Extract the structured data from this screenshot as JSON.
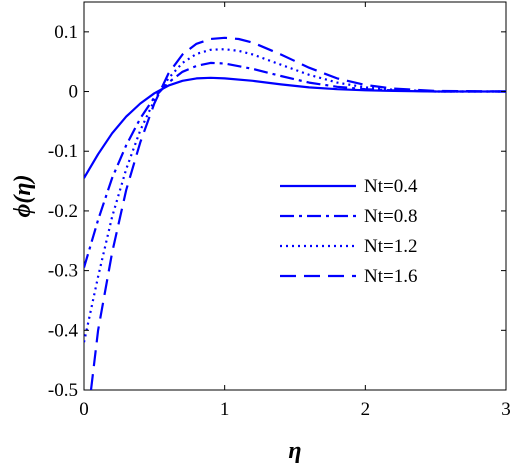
{
  "chart_data": {
    "type": "line",
    "xlabel": "η",
    "ylabel": "ϕ(η)",
    "xlim": [
      0,
      3
    ],
    "ylim": [
      -0.5,
      0.15
    ],
    "xticks": [
      0,
      1,
      2,
      3
    ],
    "xtick_labels": [
      "0",
      "1",
      "2",
      "3"
    ],
    "yticks": [
      -0.5,
      -0.4,
      -0.3,
      -0.2,
      -0.1,
      0,
      0.1
    ],
    "ytick_labels": [
      "-0.5",
      "-0.4",
      "-0.3",
      "-0.2",
      "-0.1",
      "0",
      "0.1"
    ],
    "grid": false,
    "legend_position": "center-right",
    "line_color": "#0000ff",
    "series": [
      {
        "name": "Nt=0.4",
        "style": "solid",
        "x": [
          0,
          0.1,
          0.2,
          0.3,
          0.4,
          0.5,
          0.6,
          0.7,
          0.8,
          0.9,
          1.0,
          1.2,
          1.4,
          1.6,
          1.8,
          2.0,
          2.2,
          2.5,
          3.0
        ],
        "y": [
          -0.145,
          -0.105,
          -0.07,
          -0.042,
          -0.02,
          -0.003,
          0.01,
          0.018,
          0.022,
          0.023,
          0.022,
          0.018,
          0.012,
          0.007,
          0.004,
          0.002,
          0.001,
          0.0,
          0.0
        ]
      },
      {
        "name": "Nt=0.8",
        "style": "dashdot",
        "x": [
          0,
          0.1,
          0.2,
          0.3,
          0.4,
          0.5,
          0.6,
          0.7,
          0.8,
          0.9,
          1.0,
          1.2,
          1.4,
          1.6,
          1.8,
          2.0,
          2.2,
          2.5,
          3.0
        ],
        "y": [
          -0.295,
          -0.215,
          -0.145,
          -0.09,
          -0.045,
          -0.01,
          0.015,
          0.033,
          0.043,
          0.048,
          0.047,
          0.038,
          0.026,
          0.015,
          0.008,
          0.004,
          0.002,
          0.0,
          0.0
        ]
      },
      {
        "name": "Nt=1.2",
        "style": "dotted",
        "x": [
          0,
          0.1,
          0.2,
          0.3,
          0.4,
          0.5,
          0.6,
          0.7,
          0.8,
          0.9,
          1.0,
          1.1,
          1.2,
          1.4,
          1.6,
          1.8,
          2.0,
          2.2,
          2.5,
          3.0
        ],
        "y": [
          -0.42,
          -0.31,
          -0.21,
          -0.13,
          -0.065,
          -0.015,
          0.022,
          0.048,
          0.063,
          0.07,
          0.071,
          0.068,
          0.062,
          0.045,
          0.028,
          0.015,
          0.007,
          0.003,
          0.0,
          0.0
        ]
      },
      {
        "name": "Nt=1.6",
        "style": "dashed",
        "x": [
          0.05,
          0.1,
          0.2,
          0.3,
          0.4,
          0.5,
          0.6,
          0.7,
          0.8,
          0.9,
          1.0,
          1.1,
          1.2,
          1.4,
          1.6,
          1.8,
          2.0,
          2.2,
          2.5,
          3.0
        ],
        "y": [
          -0.5,
          -0.4,
          -0.27,
          -0.165,
          -0.085,
          -0.02,
          0.03,
          0.062,
          0.08,
          0.088,
          0.09,
          0.088,
          0.082,
          0.062,
          0.04,
          0.022,
          0.011,
          0.005,
          0.001,
          0.0
        ]
      }
    ]
  }
}
